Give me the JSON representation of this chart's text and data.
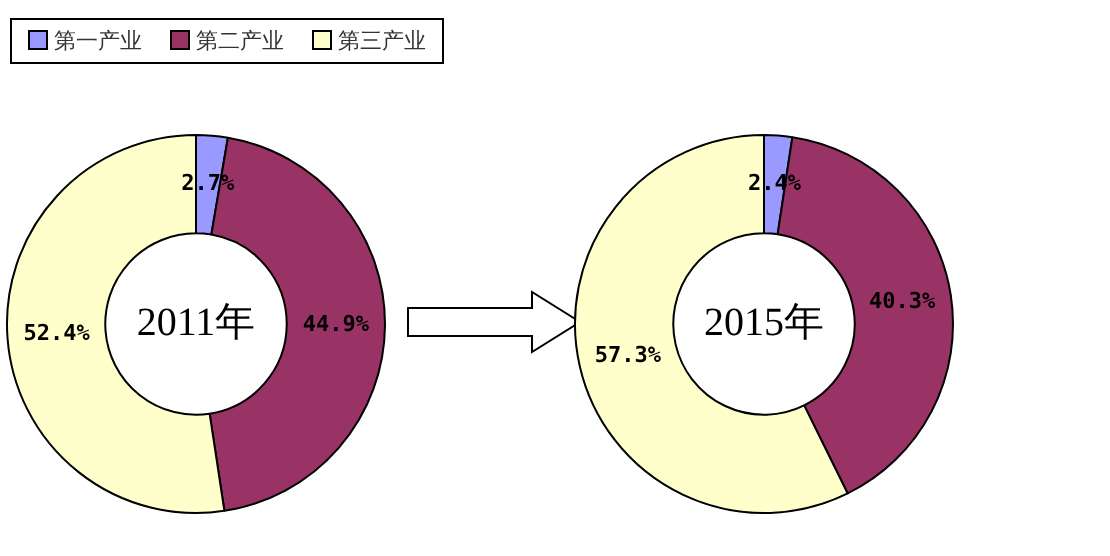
{
  "chart_data": {
    "type": "donut",
    "categories": [
      "第一产业",
      "第二产业",
      "第三产业"
    ],
    "colors": [
      "#9999ff",
      "#993366",
      "#ffffcc"
    ],
    "legend": "top left",
    "series": [
      {
        "name": "2011年",
        "values": [
          2.7,
          44.9,
          52.4
        ],
        "value_labels": [
          "2.7%",
          "44.9%",
          "52.4%"
        ]
      },
      {
        "name": "2015年",
        "values": [
          2.4,
          40.3,
          57.3
        ],
        "value_labels": [
          "2.4%",
          "40.3%",
          "57.3%"
        ]
      }
    ]
  }
}
